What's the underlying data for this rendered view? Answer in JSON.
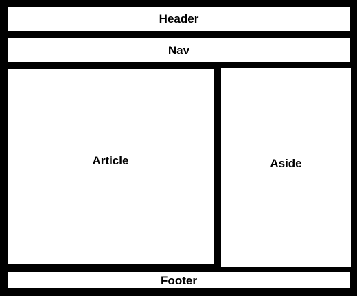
{
  "layout": {
    "header": "Header",
    "nav": "Nav",
    "article": "Article",
    "aside": "Aside",
    "footer": "Footer"
  },
  "colors": {
    "border": "#000000",
    "fill": "#ffffff",
    "text": "#000000"
  }
}
